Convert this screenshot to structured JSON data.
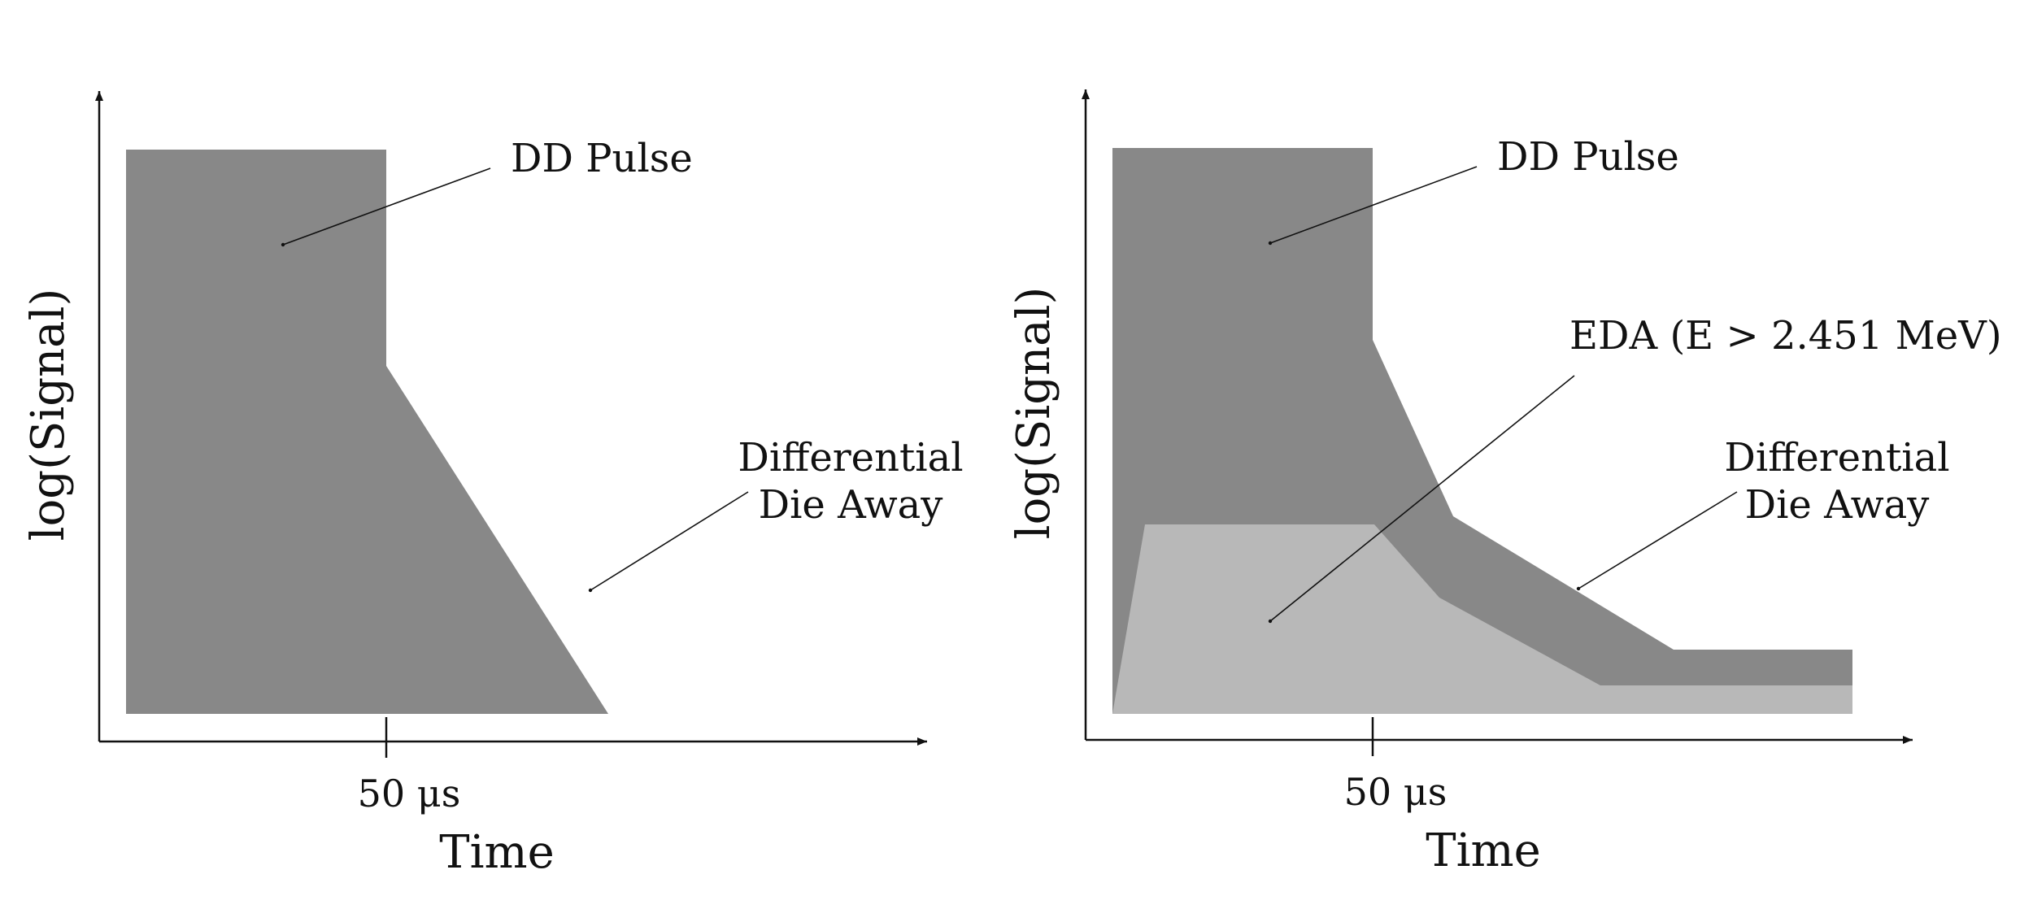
{
  "colors": {
    "dark_region": "#888888",
    "light_region": "#b8b8b8",
    "ink": "#111111",
    "background": "#ffffff"
  },
  "left_panel": {
    "ylabel": "log(Signal)",
    "xlabel": "Time",
    "tick_label": "50 μs",
    "region_label_pulse": "DD Pulse",
    "region_label_dda_line1": "Differential",
    "region_label_dda_line2": "Die Away"
  },
  "right_panel": {
    "ylabel": "log(Signal)",
    "xlabel": "Time",
    "tick_label": "50 μs",
    "region_label_pulse": "DD Pulse",
    "region_label_eda": "EDA (E > 2.451 MeV)",
    "region_label_dda_line1": "Differential",
    "region_label_dda_line2": "Die Away"
  }
}
